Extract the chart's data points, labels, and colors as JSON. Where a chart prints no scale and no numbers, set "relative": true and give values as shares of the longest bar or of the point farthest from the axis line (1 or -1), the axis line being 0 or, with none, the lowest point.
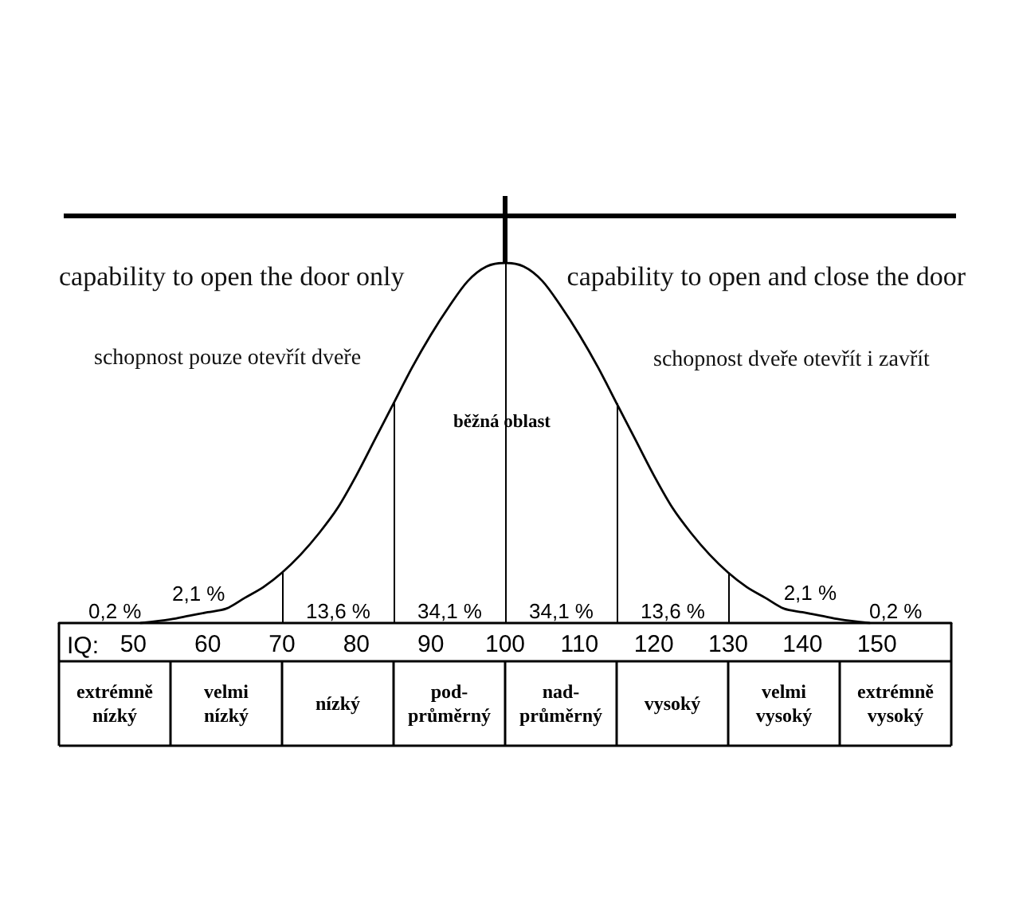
{
  "chart_data": {
    "type": "line",
    "relative": true,
    "x": [
      51,
      55,
      57.5,
      60,
      62.5,
      65,
      67.5,
      70,
      72.5,
      75,
      77.5,
      80,
      82.5,
      85,
      87.5,
      90,
      92.5,
      95,
      97.5,
      100,
      102.5,
      105,
      107.5,
      110,
      112.5,
      115,
      117.5,
      120,
      122.5,
      125,
      127.5,
      130,
      132.5,
      135,
      137.5,
      140,
      142.5,
      145,
      149
    ],
    "values": [
      0,
      0.01,
      0.02,
      0.03,
      0.04,
      0.07,
      0.1,
      0.14,
      0.19,
      0.25,
      0.32,
      0.41,
      0.51,
      0.61,
      0.71,
      0.8,
      0.88,
      0.95,
      0.99,
      1,
      0.99,
      0.95,
      0.88,
      0.8,
      0.71,
      0.61,
      0.51,
      0.41,
      0.32,
      0.25,
      0.19,
      0.14,
      0.1,
      0.07,
      0.04,
      0.03,
      0.02,
      0.01,
      0
    ],
    "color": "#000000",
    "marker": "none",
    "line_style": "solid",
    "xlabel": "IQ:",
    "xlim": [
      40,
      160
    ],
    "xticks": [
      50,
      60,
      70,
      80,
      90,
      100,
      110,
      120,
      130,
      140,
      150
    ],
    "ref_lines": [
      {
        "axis": "x",
        "value": 70
      },
      {
        "axis": "x",
        "value": 85
      },
      {
        "axis": "x",
        "value": 100
      },
      {
        "axis": "x",
        "value": 115
      },
      {
        "axis": "x",
        "value": 130
      }
    ],
    "annotations": [
      "capability to open the door only",
      "capability to open and close the door",
      "schopnost pouze otevřít dveře",
      "schopnost dveře otevřít i zavřít",
      "běžná oblast",
      "0,2 %",
      "2,1 %",
      "13,6 %",
      "34,1 %",
      "34,1 %",
      "13,6 %",
      "2,1 %",
      "0,2 %",
      "extrémně nízký",
      "velmi nízký",
      "nízký",
      "pod-průměrný",
      "nad-průměrný",
      "vysoký",
      "velmi vysoký",
      "extrémně vysoký"
    ]
  }
}
